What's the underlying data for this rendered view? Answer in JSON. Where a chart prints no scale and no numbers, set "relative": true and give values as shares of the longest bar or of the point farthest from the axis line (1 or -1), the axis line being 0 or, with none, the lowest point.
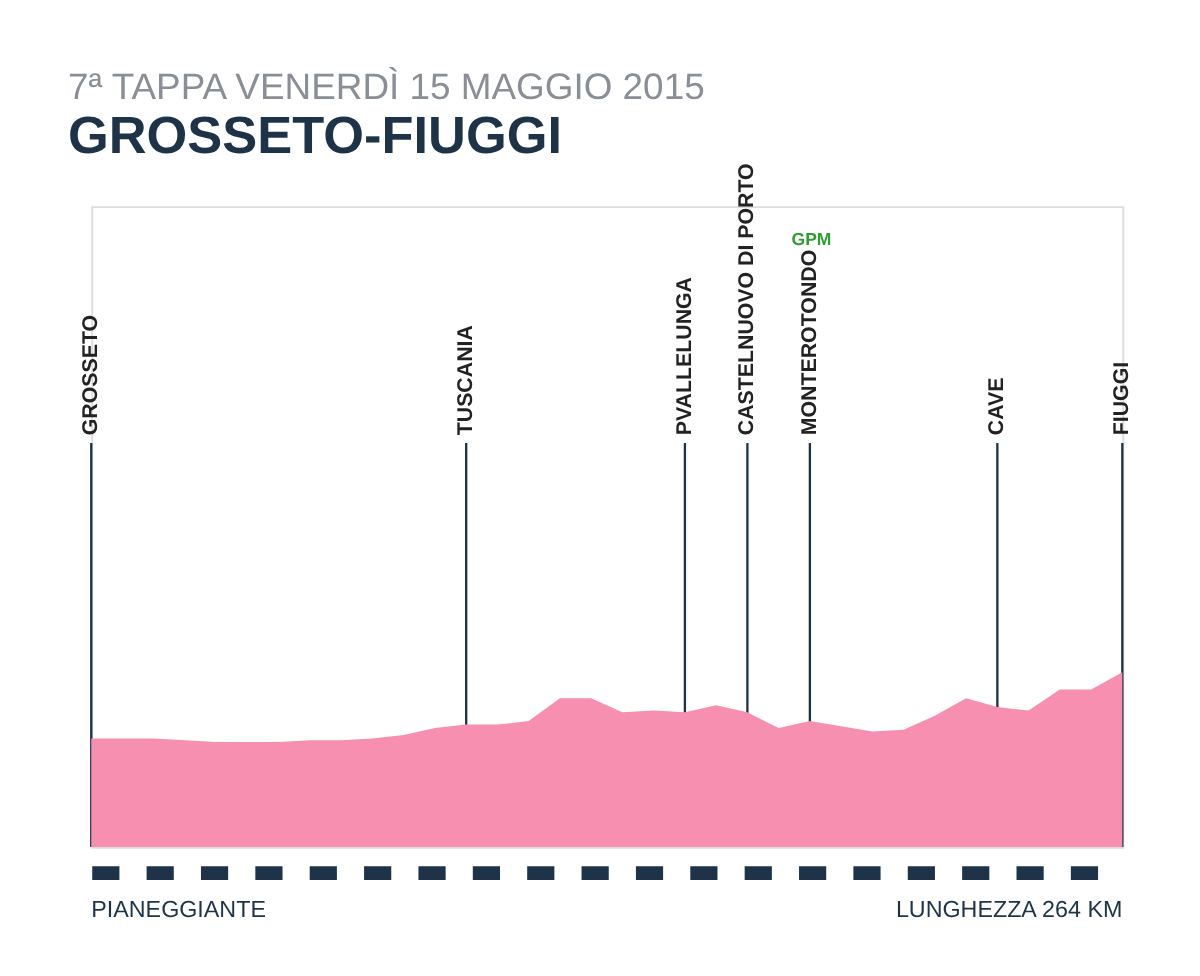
{
  "chart_data": {
    "type": "area",
    "title": "7ª TAPPA VENERDÌ 15 MAGGIO 2015",
    "subtitle": "GROSSETO-FIUGGI",
    "relative": true,
    "categories": [
      "GROSSETO",
      null,
      null,
      null,
      null,
      null,
      null,
      null,
      null,
      null,
      null,
      null,
      "TUSCANIA",
      null,
      null,
      null,
      null,
      null,
      null,
      "PVALLELUNGA",
      null,
      "CASTELNUOVO DI PORTO",
      null,
      "MONTEROTONDO",
      null,
      null,
      null,
      null,
      null,
      "CAVE",
      null,
      null,
      null,
      "FIUGGI"
    ],
    "series": [
      {
        "color": "#f78fb0",
        "values": [
          0.62,
          0.62,
          0.62,
          0.61,
          0.6,
          0.6,
          0.6,
          0.61,
          0.61,
          0.62,
          0.64,
          0.68,
          0.7,
          0.7,
          0.72,
          0.85,
          0.85,
          0.77,
          0.78,
          0.77,
          0.81,
          0.77,
          0.68,
          0.72,
          0.69,
          0.66,
          0.67,
          0.75,
          0.85,
          0.8,
          0.78,
          0.9,
          0.9,
          1.0
        ]
      }
    ],
    "grid": "x",
    "annotations": [
      "GPM",
      "PIANEGGIANTE",
      "LUNGHEZZA 264 KM"
    ]
  }
}
